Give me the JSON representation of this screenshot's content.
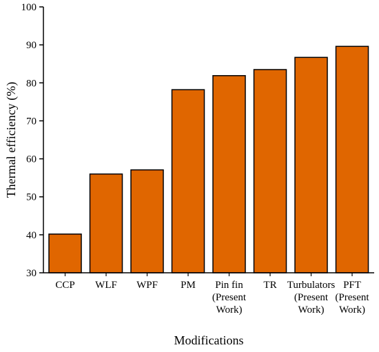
{
  "chart_data": {
    "type": "bar",
    "title": "",
    "xlabel": "Modifications",
    "ylabel": "Thermal efficiency (%)",
    "ylim": [
      30,
      100
    ],
    "yticks": [
      30,
      40,
      50,
      60,
      70,
      80,
      90,
      100
    ],
    "categories": [
      [
        "CCP"
      ],
      [
        "WLF"
      ],
      [
        "WPF"
      ],
      [
        "PM"
      ],
      [
        "Pin fin",
        "(Present",
        "Work)"
      ],
      [
        "TR"
      ],
      [
        "Turbulators",
        "(Present",
        "Work)"
      ],
      [
        "PFT",
        "(Present",
        "Work)"
      ]
    ],
    "values": [
      40.2,
      56.0,
      57.1,
      78.2,
      81.9,
      83.5,
      86.7,
      89.6
    ],
    "grid": false,
    "legend": "none",
    "colors": {
      "bar_fill": "#E06600",
      "bar_stroke": "#000000",
      "axis": "#000000"
    }
  }
}
